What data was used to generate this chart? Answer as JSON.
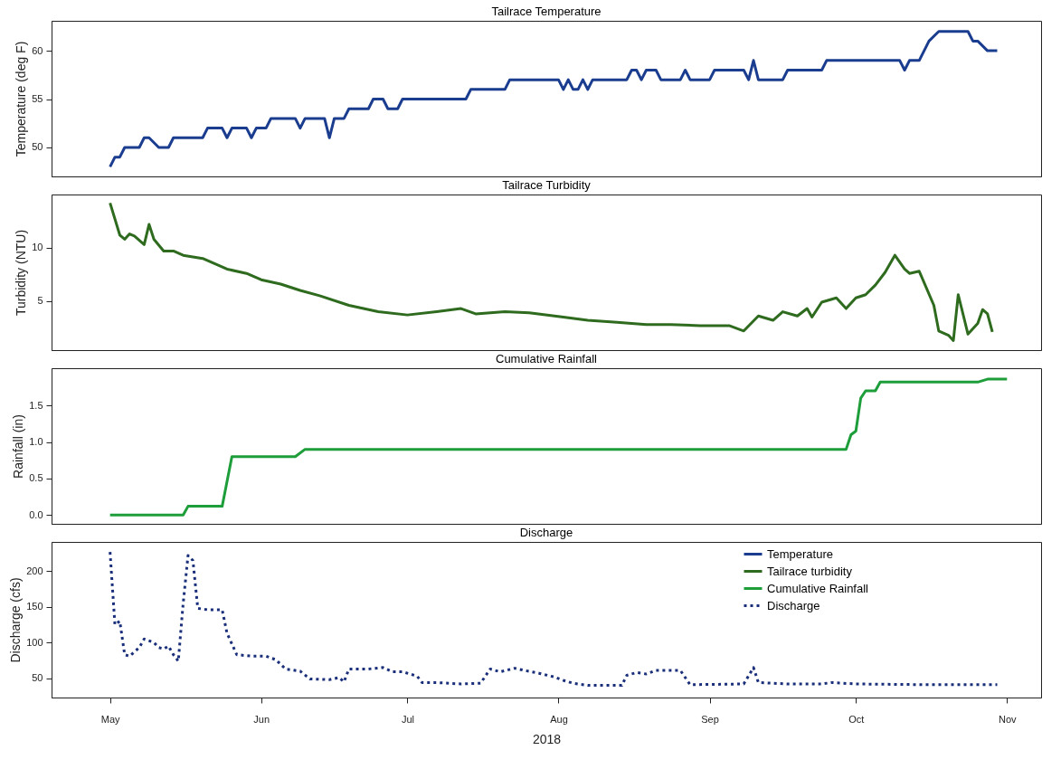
{
  "chart_data": [
    {
      "type": "line",
      "title": "Tailrace Temperature",
      "ylabel": "Temperature (deg F)",
      "xlim": [
        "2018-04-19",
        "2018-11-08"
      ],
      "ylim": [
        47,
        63.1
      ],
      "yticks": [
        50,
        55,
        60
      ],
      "tick_labels": "y",
      "series": [
        {
          "name": "Temperature",
          "color": "#1a3d8f",
          "x": [
            "2018-05-01",
            "2018-05-02",
            "2018-05-03",
            "2018-05-04",
            "2018-05-07",
            "2018-05-08",
            "2018-05-09",
            "2018-05-11",
            "2018-05-13",
            "2018-05-14",
            "2018-05-20",
            "2018-05-21",
            "2018-05-24",
            "2018-05-25",
            "2018-05-26",
            "2018-05-29",
            "2018-05-30",
            "2018-05-31",
            "2018-06-02",
            "2018-06-03",
            "2018-06-08",
            "2018-06-09",
            "2018-06-10",
            "2018-06-14",
            "2018-06-15",
            "2018-06-16",
            "2018-06-18",
            "2018-06-19",
            "2018-06-23",
            "2018-06-24",
            "2018-06-26",
            "2018-06-27",
            "2018-06-29",
            "2018-06-30",
            "2018-07-13",
            "2018-07-14",
            "2018-07-21",
            "2018-07-22",
            "2018-08-01",
            "2018-08-02",
            "2018-08-03",
            "2018-08-04",
            "2018-08-05",
            "2018-08-06",
            "2018-08-07",
            "2018-08-08",
            "2018-08-15",
            "2018-08-16",
            "2018-08-17",
            "2018-08-18",
            "2018-08-19",
            "2018-08-21",
            "2018-08-22",
            "2018-08-26",
            "2018-08-27",
            "2018-08-28",
            "2018-09-01",
            "2018-09-02",
            "2018-09-08",
            "2018-09-09",
            "2018-09-10",
            "2018-09-11",
            "2018-09-16",
            "2018-09-17",
            "2018-09-24",
            "2018-09-25",
            "2018-10-10",
            "2018-10-11",
            "2018-10-12",
            "2018-10-14",
            "2018-10-15",
            "2018-10-16",
            "2018-10-18",
            "2018-10-24",
            "2018-10-25",
            "2018-10-26",
            "2018-10-28",
            "2018-10-30"
          ],
          "values": [
            48,
            49,
            49,
            50,
            50,
            51,
            51,
            50,
            50,
            51,
            51,
            52,
            52,
            51,
            52,
            52,
            51,
            52,
            52,
            53,
            53,
            52,
            53,
            53,
            51,
            53,
            53,
            54,
            54,
            55,
            55,
            54,
            54,
            55,
            55,
            56,
            56,
            57,
            57,
            56,
            57,
            56,
            56,
            57,
            56,
            57,
            57,
            58,
            58,
            57,
            58,
            58,
            57,
            57,
            58,
            57,
            57,
            58,
            58,
            57,
            59,
            57,
            57,
            58,
            58,
            59,
            59,
            58,
            59,
            59,
            60,
            61,
            62,
            62,
            61,
            61,
            60,
            60
          ]
        }
      ]
    },
    {
      "type": "line",
      "title": "Tailrace Turbidity",
      "ylabel": "Turbidity (NTU)",
      "xlim": [
        "2018-04-19",
        "2018-11-08"
      ],
      "ylim": [
        0.4,
        15
      ],
      "yticks": [
        5,
        10
      ],
      "tick_labels": "y",
      "series": [
        {
          "name": "Tailrace turbidity",
          "color": "#2e6b1e",
          "x": [
            "2018-05-01",
            "2018-05-03",
            "2018-05-04",
            "2018-05-05",
            "2018-05-06",
            "2018-05-08",
            "2018-05-09",
            "2018-05-10",
            "2018-05-12",
            "2018-05-14",
            "2018-05-16",
            "2018-05-20",
            "2018-05-25",
            "2018-05-29",
            "2018-06-01",
            "2018-06-05",
            "2018-06-09",
            "2018-06-13",
            "2018-06-19",
            "2018-06-25",
            "2018-07-01",
            "2018-07-07",
            "2018-07-12",
            "2018-07-15",
            "2018-07-21",
            "2018-07-26",
            "2018-08-02",
            "2018-08-07",
            "2018-08-13",
            "2018-08-19",
            "2018-08-24",
            "2018-08-30",
            "2018-09-05",
            "2018-09-08",
            "2018-09-11",
            "2018-09-14",
            "2018-09-16",
            "2018-09-19",
            "2018-09-21",
            "2018-09-22",
            "2018-09-24",
            "2018-09-27",
            "2018-09-29",
            "2018-10-01",
            "2018-10-03",
            "2018-10-05",
            "2018-10-07",
            "2018-10-09",
            "2018-10-11",
            "2018-10-12",
            "2018-10-14",
            "2018-10-17",
            "2018-10-18",
            "2018-10-20",
            "2018-10-21",
            "2018-10-22",
            "2018-10-24",
            "2018-10-26",
            "2018-10-27",
            "2018-10-28",
            "2018-10-29"
          ],
          "values": [
            14.2,
            11.2,
            10.8,
            11.3,
            11.1,
            10.3,
            12.2,
            10.8,
            9.7,
            9.7,
            9.3,
            9.0,
            8.0,
            7.6,
            7.0,
            6.6,
            6.0,
            5.5,
            4.6,
            4.0,
            3.7,
            4.0,
            4.3,
            3.8,
            4.0,
            3.9,
            3.5,
            3.2,
            3.0,
            2.8,
            2.8,
            2.7,
            2.7,
            2.2,
            3.6,
            3.2,
            4.0,
            3.6,
            4.3,
            3.5,
            4.9,
            5.3,
            4.3,
            5.3,
            5.6,
            6.5,
            7.7,
            9.3,
            8.0,
            7.6,
            7.8,
            4.6,
            2.2,
            1.8,
            1.3,
            5.6,
            1.9,
            2.9,
            4.2,
            3.8,
            2.1
          ]
        }
      ]
    },
    {
      "type": "line",
      "title": "Cumulative Rainfall",
      "ylabel": "Rainfall (in)",
      "xlim": [
        "2018-04-19",
        "2018-11-08"
      ],
      "ylim": [
        -0.12,
        2.01
      ],
      "yticks": [
        {
          "value": 0,
          "label": "0.0"
        },
        0.5,
        {
          "value": 1,
          "label": "1.0"
        },
        1.5
      ],
      "tick_labels": "y",
      "series": [
        {
          "name": "Cumulative Rainfall",
          "color": "#1e9e3a",
          "x": [
            "2018-05-01",
            "2018-05-16",
            "2018-05-17",
            "2018-05-24",
            "2018-05-26",
            "2018-06-08",
            "2018-06-10",
            "2018-09-29",
            "2018-09-30",
            "2018-10-01",
            "2018-10-02",
            "2018-10-03",
            "2018-10-05",
            "2018-10-06",
            "2018-10-26",
            "2018-10-28",
            "2018-11-01"
          ],
          "values": [
            0,
            0,
            0.12,
            0.12,
            0.8,
            0.8,
            0.9,
            0.9,
            1.1,
            1.15,
            1.6,
            1.7,
            1.7,
            1.82,
            1.82,
            1.86,
            1.86
          ]
        }
      ]
    },
    {
      "type": "line",
      "title": "Discharge",
      "ylabel": "Discharge (cfs)",
      "xlabel": "2018",
      "xlim": [
        "2018-04-19",
        "2018-11-08"
      ],
      "xticks": [
        {
          "value": "2018-05-01",
          "label": "May"
        },
        {
          "value": "2018-06-01",
          "label": "Jun"
        },
        {
          "value": "2018-07-01",
          "label": "Jul"
        },
        {
          "value": "2018-08-01",
          "label": "Aug"
        },
        {
          "value": "2018-09-01",
          "label": "Sep"
        },
        {
          "value": "2018-10-01",
          "label": "Oct"
        },
        {
          "value": "2018-11-01",
          "label": "Nov"
        }
      ],
      "ylim": [
        23,
        241
      ],
      "yticks": [
        50,
        100,
        150,
        200
      ],
      "legend": "top right",
      "series": [
        {
          "name": "Discharge",
          "color": "#1a2f7a",
          "line_style": "dotted",
          "x": [
            "2018-05-01",
            "2018-05-02",
            "2018-05-03",
            "2018-05-04",
            "2018-05-05",
            "2018-05-07",
            "2018-05-08",
            "2018-05-10",
            "2018-05-11",
            "2018-05-12",
            "2018-05-13",
            "2018-05-14",
            "2018-05-15",
            "2018-05-16",
            "2018-05-17",
            "2018-05-18",
            "2018-05-19",
            "2018-05-21",
            "2018-05-24",
            "2018-05-25",
            "2018-05-27",
            "2018-05-30",
            "2018-06-02",
            "2018-06-04",
            "2018-06-06",
            "2018-06-09",
            "2018-06-11",
            "2018-06-15",
            "2018-06-17",
            "2018-06-18",
            "2018-06-19",
            "2018-06-23",
            "2018-06-26",
            "2018-06-28",
            "2018-06-30",
            "2018-07-03",
            "2018-07-04",
            "2018-07-07",
            "2018-07-12",
            "2018-07-16",
            "2018-07-18",
            "2018-07-20",
            "2018-07-23",
            "2018-07-25",
            "2018-07-28",
            "2018-07-31",
            "2018-08-02",
            "2018-08-04",
            "2018-08-07",
            "2018-08-14",
            "2018-08-15",
            "2018-08-17",
            "2018-08-19",
            "2018-08-21",
            "2018-08-26",
            "2018-08-28",
            "2018-09-08",
            "2018-09-10",
            "2018-09-11",
            "2018-09-17",
            "2018-09-24",
            "2018-09-26",
            "2018-10-01",
            "2018-10-16",
            "2018-10-30"
          ],
          "values": [
            227,
            125,
            130,
            83,
            81,
            93,
            105,
            100,
            93,
            91,
            95,
            83,
            74,
            155,
            222,
            215,
            148,
            146,
            146,
            113,
            83,
            81,
            81,
            76,
            63,
            60,
            49,
            48,
            51,
            45,
            63,
            63,
            65,
            59,
            59,
            53,
            44,
            44,
            42,
            43,
            63,
            59,
            64,
            61,
            57,
            52,
            47,
            43,
            40,
            40,
            54,
            58,
            56,
            61,
            61,
            41,
            42,
            65,
            44,
            42,
            42,
            44,
            42,
            41,
            41
          ]
        }
      ]
    }
  ]
}
